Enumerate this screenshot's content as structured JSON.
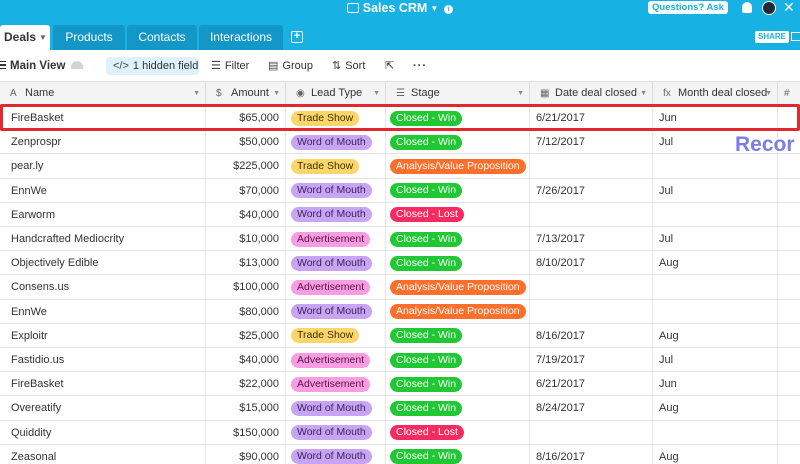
{
  "app": {
    "title": "Sales CRM",
    "help_label": "Questions? Ask us",
    "share_label": "SHARE"
  },
  "tabs": [
    {
      "label": "Deals",
      "active": true
    },
    {
      "label": "Products",
      "active": false
    },
    {
      "label": "Contacts",
      "active": false
    },
    {
      "label": "Interactions",
      "active": false
    }
  ],
  "toolbar": {
    "view_name": "Main View",
    "hidden_fields_label": "1 hidden field",
    "filter_label": "Filter",
    "group_label": "Group",
    "sort_label": "Sort"
  },
  "columns": [
    {
      "label": "Name",
      "type_icon": "A"
    },
    {
      "label": "Amount",
      "type_icon": "$"
    },
    {
      "label": "Lead Type",
      "type_icon": "◉"
    },
    {
      "label": "Stage",
      "type_icon": "☰"
    },
    {
      "label": "Date deal closed",
      "type_icon": "▦"
    },
    {
      "label": "Month deal closed",
      "type_icon": "fx"
    },
    {
      "label": "",
      "type_icon": "#"
    }
  ],
  "rows": [
    {
      "name": "FireBasket",
      "amount": "$65,000",
      "lead": "Trade Show",
      "stage": "Closed - Win",
      "date": "6/21/2017",
      "month": "Jun"
    },
    {
      "name": "Zenprospr",
      "amount": "$50,000",
      "lead": "Word of Mouth",
      "stage": "Closed - Win",
      "date": "7/12/2017",
      "month": "Jul"
    },
    {
      "name": "pear.ly",
      "amount": "$225,000",
      "lead": "Trade Show",
      "stage": "Analysis/Value Proposition",
      "date": "",
      "month": ""
    },
    {
      "name": "EnnWe",
      "amount": "$70,000",
      "lead": "Word of Mouth",
      "stage": "Closed - Win",
      "date": "7/26/2017",
      "month": "Jul"
    },
    {
      "name": "Earworm",
      "amount": "$40,000",
      "lead": "Word of Mouth",
      "stage": "Closed - Lost",
      "date": "",
      "month": ""
    },
    {
      "name": "Handcrafted Mediocrity",
      "amount": "$10,000",
      "lead": "Advertisement",
      "stage": "Closed - Win",
      "date": "7/13/2017",
      "month": "Jul"
    },
    {
      "name": "Objectively Edible",
      "amount": "$13,000",
      "lead": "Word of Mouth",
      "stage": "Closed - Win",
      "date": "8/10/2017",
      "month": "Aug"
    },
    {
      "name": "Consens.us",
      "amount": "$100,000",
      "lead": "Advertisement",
      "stage": "Analysis/Value Proposition",
      "date": "",
      "month": ""
    },
    {
      "name": "EnnWe",
      "amount": "$80,000",
      "lead": "Word of Mouth",
      "stage": "Analysis/Value Proposition",
      "date": "",
      "month": ""
    },
    {
      "name": "Exploitr",
      "amount": "$25,000",
      "lead": "Trade Show",
      "stage": "Closed - Win",
      "date": "8/16/2017",
      "month": "Aug"
    },
    {
      "name": "Fastidio.us",
      "amount": "$40,000",
      "lead": "Advertisement",
      "stage": "Closed - Win",
      "date": "7/19/2017",
      "month": "Jul"
    },
    {
      "name": "FireBasket",
      "amount": "$22,000",
      "lead": "Advertisement",
      "stage": "Closed - Win",
      "date": "6/21/2017",
      "month": "Jun"
    },
    {
      "name": "Overeatify",
      "amount": "$15,000",
      "lead": "Word of Mouth",
      "stage": "Closed - Win",
      "date": "8/24/2017",
      "month": "Aug"
    },
    {
      "name": "Quiddity",
      "amount": "$150,000",
      "lead": "Word of Mouth",
      "stage": "Closed - Lost",
      "date": "",
      "month": ""
    },
    {
      "name": "Zeasonal",
      "amount": "$90,000",
      "lead": "Word of Mouth",
      "stage": "Closed - Win",
      "date": "8/16/2017",
      "month": "Aug"
    }
  ],
  "pill_colors": {
    "Trade Show": {
      "bg": "#fcd66b",
      "fg": "#3b2f00"
    },
    "Word of Mouth": {
      "bg": "#c8a5f2",
      "fg": "#3a1f5c"
    },
    "Advertisement": {
      "bg": "#f99de2",
      "fg": "#5a1348"
    },
    "Closed - Win": {
      "bg": "#20c933",
      "fg": "#ffffff"
    },
    "Closed - Lost": {
      "bg": "#f82b60",
      "fg": "#ffffff"
    },
    "Analysis/Value Proposition": {
      "bg": "#ff6f2c",
      "fg": "#ffffff"
    }
  },
  "callout": "Recor",
  "colors": {
    "brand": "#18b1e4",
    "highlight": "#e0292e",
    "callout": "#7b7ee8"
  }
}
